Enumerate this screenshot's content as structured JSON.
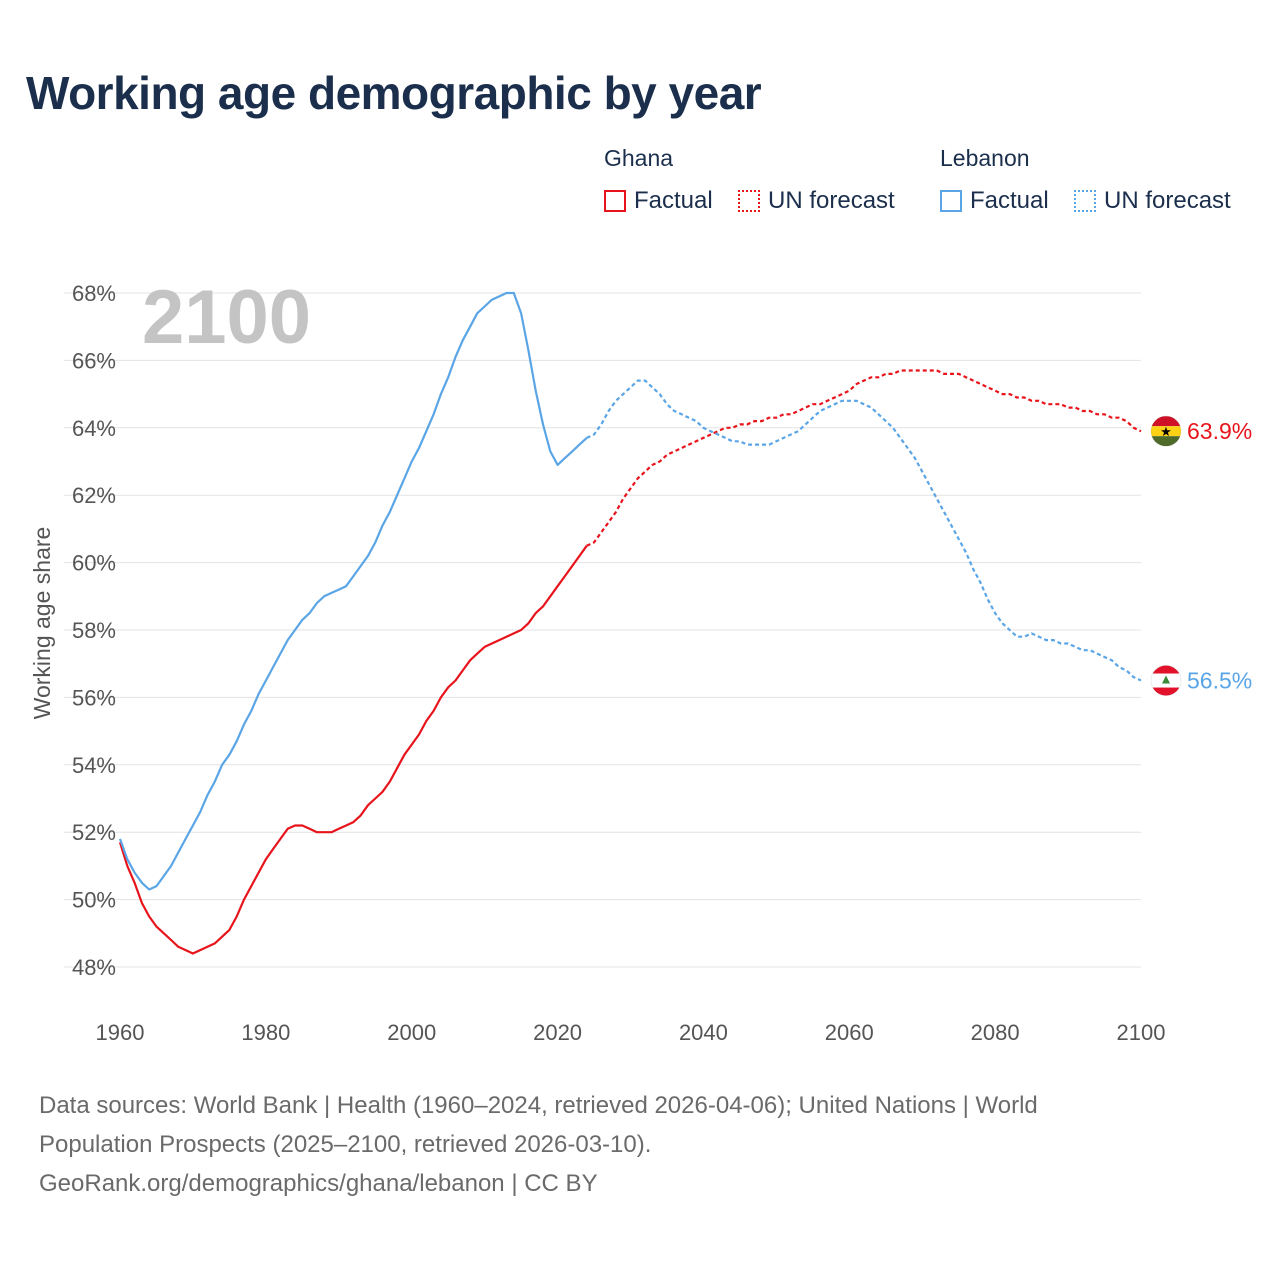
{
  "title": "Working age demographic by year",
  "legend": {
    "ghana": {
      "name": "Ghana",
      "factual": "Factual",
      "forecast": "UN forecast"
    },
    "lebanon": {
      "name": "Lebanon",
      "factual": "Factual",
      "forecast": "UN forecast"
    }
  },
  "colors": {
    "ghana": "#e8141c",
    "lebanon": "#5aa5e6",
    "title": "#1b2f4d",
    "grid": "#e3e3e3"
  },
  "chart_data": {
    "type": "line",
    "xlabel": "",
    "ylabel": "Working age share",
    "xlim": [
      1960,
      2100
    ],
    "ylim": [
      48,
      68
    ],
    "x_ticks": [
      1960,
      1980,
      2000,
      2020,
      2040,
      2060,
      2080,
      2100
    ],
    "y_ticks": [
      48,
      50,
      52,
      54,
      56,
      58,
      60,
      62,
      64,
      66,
      68
    ],
    "y_tick_suffix": "%",
    "current_year": "2100",
    "forecast_start": 2024,
    "series": [
      {
        "name": "Ghana",
        "flag": "ghana-flag",
        "end_label": "63.9%",
        "points": [
          [
            1960,
            51.7
          ],
          [
            1961,
            51.0
          ],
          [
            1962,
            50.5
          ],
          [
            1963,
            49.9
          ],
          [
            1964,
            49.5
          ],
          [
            1965,
            49.2
          ],
          [
            1966,
            49.0
          ],
          [
            1967,
            48.8
          ],
          [
            1968,
            48.6
          ],
          [
            1969,
            48.5
          ],
          [
            1970,
            48.4
          ],
          [
            1971,
            48.5
          ],
          [
            1972,
            48.6
          ],
          [
            1973,
            48.7
          ],
          [
            1974,
            48.9
          ],
          [
            1975,
            49.1
          ],
          [
            1976,
            49.5
          ],
          [
            1977,
            50.0
          ],
          [
            1978,
            50.4
          ],
          [
            1979,
            50.8
          ],
          [
            1980,
            51.2
          ],
          [
            1981,
            51.5
          ],
          [
            1982,
            51.8
          ],
          [
            1983,
            52.1
          ],
          [
            1984,
            52.2
          ],
          [
            1985,
            52.2
          ],
          [
            1986,
            52.1
          ],
          [
            1987,
            52.0
          ],
          [
            1988,
            52.0
          ],
          [
            1989,
            52.0
          ],
          [
            1990,
            52.1
          ],
          [
            1991,
            52.2
          ],
          [
            1992,
            52.3
          ],
          [
            1993,
            52.5
          ],
          [
            1994,
            52.8
          ],
          [
            1995,
            53.0
          ],
          [
            1996,
            53.2
          ],
          [
            1997,
            53.5
          ],
          [
            1998,
            53.9
          ],
          [
            1999,
            54.3
          ],
          [
            2000,
            54.6
          ],
          [
            2001,
            54.9
          ],
          [
            2002,
            55.3
          ],
          [
            2003,
            55.6
          ],
          [
            2004,
            56.0
          ],
          [
            2005,
            56.3
          ],
          [
            2006,
            56.5
          ],
          [
            2007,
            56.8
          ],
          [
            2008,
            57.1
          ],
          [
            2009,
            57.3
          ],
          [
            2010,
            57.5
          ],
          [
            2011,
            57.6
          ],
          [
            2012,
            57.7
          ],
          [
            2013,
            57.8
          ],
          [
            2014,
            57.9
          ],
          [
            2015,
            58.0
          ],
          [
            2016,
            58.2
          ],
          [
            2017,
            58.5
          ],
          [
            2018,
            58.7
          ],
          [
            2019,
            59.0
          ],
          [
            2020,
            59.3
          ],
          [
            2021,
            59.6
          ],
          [
            2022,
            59.9
          ],
          [
            2023,
            60.2
          ],
          [
            2024,
            60.5
          ],
          [
            2025,
            60.6
          ],
          [
            2026,
            60.9
          ],
          [
            2027,
            61.2
          ],
          [
            2028,
            61.5
          ],
          [
            2029,
            61.9
          ],
          [
            2030,
            62.2
          ],
          [
            2031,
            62.5
          ],
          [
            2032,
            62.7
          ],
          [
            2033,
            62.9
          ],
          [
            2034,
            63.0
          ],
          [
            2035,
            63.2
          ],
          [
            2036,
            63.3
          ],
          [
            2037,
            63.4
          ],
          [
            2038,
            63.5
          ],
          [
            2039,
            63.6
          ],
          [
            2040,
            63.7
          ],
          [
            2041,
            63.8
          ],
          [
            2042,
            63.9
          ],
          [
            2043,
            64.0
          ],
          [
            2044,
            64.0
          ],
          [
            2045,
            64.1
          ],
          [
            2046,
            64.1
          ],
          [
            2047,
            64.2
          ],
          [
            2048,
            64.2
          ],
          [
            2049,
            64.3
          ],
          [
            2050,
            64.3
          ],
          [
            2051,
            64.4
          ],
          [
            2052,
            64.4
          ],
          [
            2053,
            64.5
          ],
          [
            2054,
            64.6
          ],
          [
            2055,
            64.7
          ],
          [
            2056,
            64.7
          ],
          [
            2057,
            64.8
          ],
          [
            2058,
            64.9
          ],
          [
            2059,
            65.0
          ],
          [
            2060,
            65.1
          ],
          [
            2061,
            65.3
          ],
          [
            2062,
            65.4
          ],
          [
            2063,
            65.5
          ],
          [
            2064,
            65.5
          ],
          [
            2065,
            65.6
          ],
          [
            2066,
            65.6
          ],
          [
            2067,
            65.7
          ],
          [
            2068,
            65.7
          ],
          [
            2069,
            65.7
          ],
          [
            2070,
            65.7
          ],
          [
            2071,
            65.7
          ],
          [
            2072,
            65.7
          ],
          [
            2073,
            65.6
          ],
          [
            2074,
            65.6
          ],
          [
            2075,
            65.6
          ],
          [
            2076,
            65.5
          ],
          [
            2077,
            65.4
          ],
          [
            2078,
            65.3
          ],
          [
            2079,
            65.2
          ],
          [
            2080,
            65.1
          ],
          [
            2081,
            65.0
          ],
          [
            2082,
            65.0
          ],
          [
            2083,
            64.9
          ],
          [
            2084,
            64.9
          ],
          [
            2085,
            64.8
          ],
          [
            2086,
            64.8
          ],
          [
            2087,
            64.7
          ],
          [
            2088,
            64.7
          ],
          [
            2089,
            64.7
          ],
          [
            2090,
            64.6
          ],
          [
            2091,
            64.6
          ],
          [
            2092,
            64.5
          ],
          [
            2093,
            64.5
          ],
          [
            2094,
            64.4
          ],
          [
            2095,
            64.4
          ],
          [
            2096,
            64.3
          ],
          [
            2097,
            64.3
          ],
          [
            2098,
            64.2
          ],
          [
            2099,
            64.0
          ],
          [
            2100,
            63.9
          ]
        ]
      },
      {
        "name": "Lebanon",
        "flag": "lebanon-flag",
        "end_label": "56.5%",
        "points": [
          [
            1960,
            51.8
          ],
          [
            1961,
            51.2
          ],
          [
            1962,
            50.8
          ],
          [
            1963,
            50.5
          ],
          [
            1964,
            50.3
          ],
          [
            1965,
            50.4
          ],
          [
            1966,
            50.7
          ],
          [
            1967,
            51.0
          ],
          [
            1968,
            51.4
          ],
          [
            1969,
            51.8
          ],
          [
            1970,
            52.2
          ],
          [
            1971,
            52.6
          ],
          [
            1972,
            53.1
          ],
          [
            1973,
            53.5
          ],
          [
            1974,
            54.0
          ],
          [
            1975,
            54.3
          ],
          [
            1976,
            54.7
          ],
          [
            1977,
            55.2
          ],
          [
            1978,
            55.6
          ],
          [
            1979,
            56.1
          ],
          [
            1980,
            56.5
          ],
          [
            1981,
            56.9
          ],
          [
            1982,
            57.3
          ],
          [
            1983,
            57.7
          ],
          [
            1984,
            58.0
          ],
          [
            1985,
            58.3
          ],
          [
            1986,
            58.5
          ],
          [
            1987,
            58.8
          ],
          [
            1988,
            59.0
          ],
          [
            1989,
            59.1
          ],
          [
            1990,
            59.2
          ],
          [
            1991,
            59.3
          ],
          [
            1992,
            59.6
          ],
          [
            1993,
            59.9
          ],
          [
            1994,
            60.2
          ],
          [
            1995,
            60.6
          ],
          [
            1996,
            61.1
          ],
          [
            1997,
            61.5
          ],
          [
            1998,
            62.0
          ],
          [
            1999,
            62.5
          ],
          [
            2000,
            63.0
          ],
          [
            2001,
            63.4
          ],
          [
            2002,
            63.9
          ],
          [
            2003,
            64.4
          ],
          [
            2004,
            65.0
          ],
          [
            2005,
            65.5
          ],
          [
            2006,
            66.1
          ],
          [
            2007,
            66.6
          ],
          [
            2008,
            67.0
          ],
          [
            2009,
            67.4
          ],
          [
            2010,
            67.6
          ],
          [
            2011,
            67.8
          ],
          [
            2012,
            67.9
          ],
          [
            2013,
            68.0
          ],
          [
            2014,
            68.0
          ],
          [
            2015,
            67.4
          ],
          [
            2016,
            66.3
          ],
          [
            2017,
            65.1
          ],
          [
            2018,
            64.1
          ],
          [
            2019,
            63.3
          ],
          [
            2020,
            62.9
          ],
          [
            2021,
            63.1
          ],
          [
            2022,
            63.3
          ],
          [
            2023,
            63.5
          ],
          [
            2024,
            63.7
          ],
          [
            2025,
            63.8
          ],
          [
            2026,
            64.1
          ],
          [
            2027,
            64.5
          ],
          [
            2028,
            64.8
          ],
          [
            2029,
            65.0
          ],
          [
            2030,
            65.2
          ],
          [
            2031,
            65.4
          ],
          [
            2032,
            65.4
          ],
          [
            2033,
            65.2
          ],
          [
            2034,
            65.0
          ],
          [
            2035,
            64.7
          ],
          [
            2036,
            64.5
          ],
          [
            2037,
            64.4
          ],
          [
            2038,
            64.3
          ],
          [
            2039,
            64.2
          ],
          [
            2040,
            64.0
          ],
          [
            2041,
            63.9
          ],
          [
            2042,
            63.8
          ],
          [
            2043,
            63.7
          ],
          [
            2044,
            63.6
          ],
          [
            2045,
            63.6
          ],
          [
            2046,
            63.5
          ],
          [
            2047,
            63.5
          ],
          [
            2048,
            63.5
          ],
          [
            2049,
            63.5
          ],
          [
            2050,
            63.6
          ],
          [
            2051,
            63.7
          ],
          [
            2052,
            63.8
          ],
          [
            2053,
            63.9
          ],
          [
            2054,
            64.1
          ],
          [
            2055,
            64.3
          ],
          [
            2056,
            64.5
          ],
          [
            2057,
            64.6
          ],
          [
            2058,
            64.7
          ],
          [
            2059,
            64.8
          ],
          [
            2060,
            64.8
          ],
          [
            2061,
            64.8
          ],
          [
            2062,
            64.7
          ],
          [
            2063,
            64.6
          ],
          [
            2064,
            64.4
          ],
          [
            2065,
            64.2
          ],
          [
            2066,
            64.0
          ],
          [
            2067,
            63.7
          ],
          [
            2068,
            63.4
          ],
          [
            2069,
            63.1
          ],
          [
            2070,
            62.7
          ],
          [
            2071,
            62.3
          ],
          [
            2072,
            61.9
          ],
          [
            2073,
            61.5
          ],
          [
            2074,
            61.1
          ],
          [
            2075,
            60.7
          ],
          [
            2076,
            60.3
          ],
          [
            2077,
            59.8
          ],
          [
            2078,
            59.4
          ],
          [
            2079,
            58.9
          ],
          [
            2080,
            58.5
          ],
          [
            2081,
            58.2
          ],
          [
            2082,
            58.0
          ],
          [
            2083,
            57.8
          ],
          [
            2084,
            57.8
          ],
          [
            2085,
            57.9
          ],
          [
            2086,
            57.8
          ],
          [
            2087,
            57.7
          ],
          [
            2088,
            57.7
          ],
          [
            2089,
            57.6
          ],
          [
            2090,
            57.6
          ],
          [
            2091,
            57.5
          ],
          [
            2092,
            57.4
          ],
          [
            2093,
            57.4
          ],
          [
            2094,
            57.3
          ],
          [
            2095,
            57.2
          ],
          [
            2096,
            57.1
          ],
          [
            2097,
            56.9
          ],
          [
            2098,
            56.8
          ],
          [
            2099,
            56.6
          ],
          [
            2100,
            56.5
          ]
        ]
      }
    ]
  },
  "footer": {
    "line1": "Data sources: World Bank | Health (1960–2024, retrieved 2026-04-06); United Nations | World",
    "line2": "Population Prospects (2025–2100, retrieved 2026-03-10).",
    "line3": "GeoRank.org/demographics/ghana/lebanon | CC BY"
  }
}
